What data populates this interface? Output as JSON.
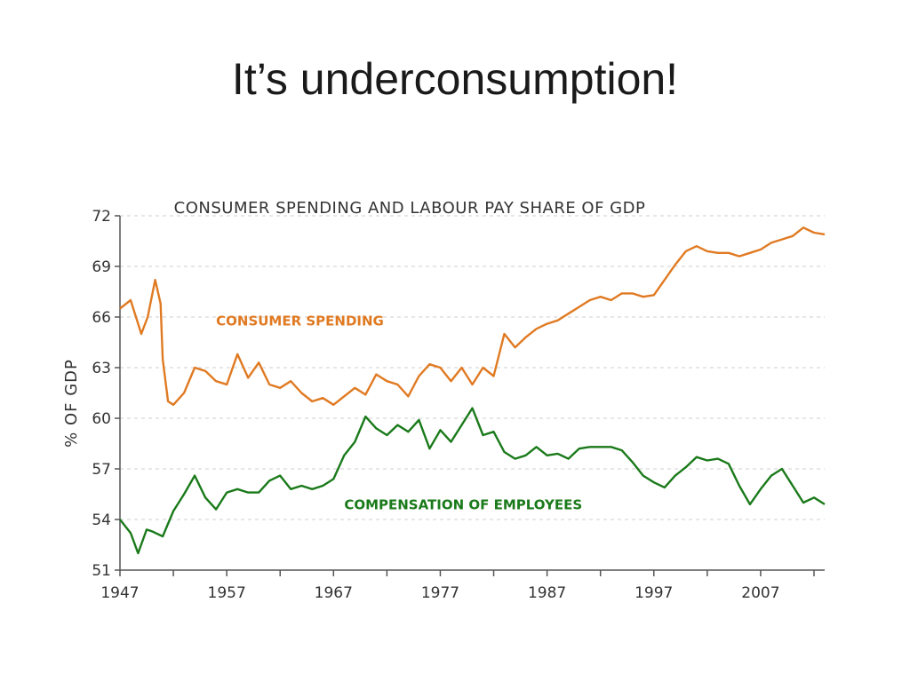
{
  "slide": {
    "title": "It’s underconsumption!"
  },
  "chart_data": {
    "type": "line",
    "title": "CONSUMER SPENDING AND LABOUR PAY SHARE OF GDP",
    "xlabel": "",
    "ylabel": "% OF GDP",
    "xlim": [
      1947,
      2013
    ],
    "ylim": [
      51,
      72
    ],
    "x_ticks": [
      1947,
      1957,
      1967,
      1977,
      1987,
      1997,
      2007
    ],
    "y_ticks": [
      51,
      54,
      57,
      60,
      63,
      66,
      69,
      72
    ],
    "grid": true,
    "colors": {
      "consumer": "#e07a22",
      "compensation": "#1a7a1a",
      "grid": "#cfcfcf",
      "axis": "#555555"
    },
    "series": [
      {
        "name": "CONSUMER SPENDING",
        "color": "#e07a22",
        "x": [
          1947,
          1948,
          1949,
          1949.6,
          1950.3,
          1950.8,
          1951,
          1951.5,
          1952,
          1953,
          1954,
          1955,
          1956,
          1957,
          1958,
          1959,
          1960,
          1961,
          1962,
          1963,
          1964,
          1965,
          1966,
          1967,
          1968,
          1969,
          1970,
          1971,
          1972,
          1973,
          1974,
          1975,
          1976,
          1977,
          1978,
          1979,
          1980,
          1981,
          1982,
          1983,
          1984,
          1985,
          1986,
          1987,
          1988,
          1989,
          1990,
          1991,
          1992,
          1993,
          1994,
          1995,
          1996,
          1997,
          1998,
          1999,
          2000,
          2001,
          2002,
          2003,
          2004,
          2005,
          2006,
          2007,
          2008,
          2009,
          2010,
          2011,
          2012,
          2013
        ],
        "values": [
          66.5,
          67.0,
          65.0,
          66.0,
          68.2,
          66.8,
          63.5,
          61.0,
          60.8,
          61.5,
          63.0,
          62.8,
          62.2,
          62.0,
          63.8,
          62.4,
          63.3,
          62.0,
          61.8,
          62.2,
          61.5,
          61.0,
          61.2,
          60.8,
          61.3,
          61.8,
          61.4,
          62.6,
          62.2,
          62.0,
          61.3,
          62.5,
          63.2,
          63.0,
          62.2,
          63.0,
          62.0,
          63.0,
          62.5,
          65.0,
          64.2,
          64.8,
          65.3,
          65.6,
          65.8,
          66.2,
          66.6,
          67.0,
          67.2,
          67.0,
          67.4,
          67.4,
          67.2,
          67.3,
          68.2,
          69.1,
          69.9,
          70.2,
          69.9,
          69.8,
          69.8,
          69.6,
          69.8,
          70.0,
          70.4,
          70.6,
          70.8,
          71.3,
          71.0,
          70.9
        ]
      },
      {
        "name": "COMPENSATION OF EMPLOYEES",
        "color": "#1a7a1a",
        "x": [
          1947,
          1948,
          1948.7,
          1949.5,
          1950,
          1951,
          1952,
          1953,
          1954,
          1955,
          1956,
          1957,
          1958,
          1959,
          1960,
          1961,
          1962,
          1963,
          1964,
          1965,
          1966,
          1967,
          1968,
          1969,
          1970,
          1971,
          1972,
          1973,
          1974,
          1975,
          1976,
          1977,
          1978,
          1979,
          1980,
          1981,
          1982,
          1983,
          1984,
          1985,
          1986,
          1987,
          1988,
          1989,
          1990,
          1991,
          1992,
          1993,
          1994,
          1995,
          1996,
          1997,
          1998,
          1999,
          2000,
          2001,
          2002,
          2003,
          2004,
          2005,
          2006,
          2007,
          2008,
          2009,
          2010,
          2011,
          2012,
          2013
        ],
        "values": [
          54.0,
          53.2,
          52.0,
          53.4,
          53.3,
          53.0,
          54.5,
          55.5,
          56.6,
          55.3,
          54.6,
          55.6,
          55.8,
          55.6,
          55.6,
          56.3,
          56.6,
          55.8,
          56.0,
          55.8,
          56.0,
          56.4,
          57.8,
          58.6,
          60.1,
          59.4,
          59.0,
          59.6,
          59.2,
          59.9,
          58.2,
          59.3,
          58.6,
          59.6,
          60.6,
          59.0,
          59.2,
          58.0,
          57.6,
          57.8,
          58.3,
          57.8,
          57.9,
          57.6,
          58.2,
          58.3,
          58.3,
          58.3,
          58.1,
          57.4,
          56.6,
          56.2,
          55.9,
          56.6,
          57.1,
          57.7,
          57.5,
          57.6,
          57.3,
          56.0,
          54.9,
          55.8,
          56.6,
          57.0,
          56.0,
          55.0,
          55.3,
          54.9
        ]
      }
    ],
    "annotations": [
      {
        "text": "CONSUMER SPENDING",
        "x": 1956,
        "y": 65.5,
        "color": "#e07a22"
      },
      {
        "text": "COMPENSATION OF EMPLOYEES",
        "x": 1968,
        "y": 54.6,
        "color": "#1a7a1a"
      }
    ]
  }
}
